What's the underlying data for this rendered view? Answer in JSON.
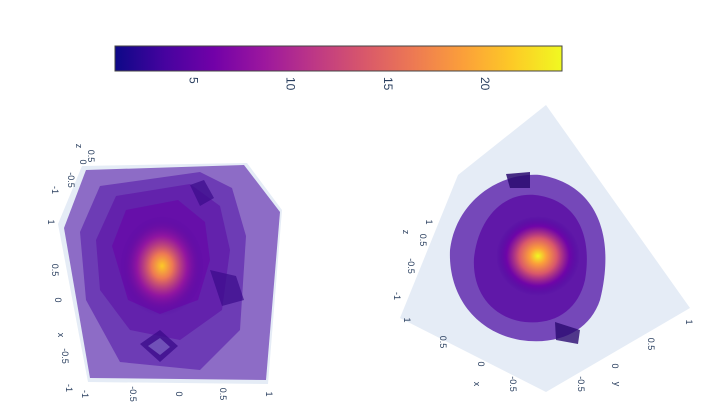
{
  "chart_data": {
    "type": "3d-isosurface",
    "colorscale": "Plasma",
    "colorbar": {
      "range": [
        1,
        24
      ],
      "ticks": [
        5,
        10,
        15,
        20
      ],
      "tick_labels": [
        "5",
        "10",
        "15",
        "20"
      ],
      "colors": [
        "#0d0887",
        "#46039f",
        "#7201a8",
        "#9c179e",
        "#bd3786",
        "#d8576b",
        "#ed7953",
        "#fb9f3a",
        "#fdca26",
        "#f0f921"
      ]
    },
    "scenes": [
      {
        "name": "left",
        "axes": {
          "x": {
            "title": "x",
            "range": [
              -1,
              1
            ],
            "ticks": [
              "-1",
              "-0.5",
              "0",
              "0.5",
              "1"
            ]
          },
          "y": {
            "title": "",
            "range": [
              -1,
              1
            ],
            "ticks": [
              "-1",
              "-0.5",
              "0",
              "0.5",
              "1"
            ]
          },
          "z": {
            "title": "z",
            "range": [
              -1,
              1
            ],
            "ticks": [
              "1",
              "0.5",
              "0",
              "-0.5"
            ]
          }
        },
        "value_range": [
          1,
          24
        ]
      },
      {
        "name": "right",
        "axes": {
          "x": {
            "title": "x",
            "range": [
              -1,
              1
            ],
            "ticks": [
              "1",
              "0.5",
              "0",
              "-0.5"
            ]
          },
          "y": {
            "title": "y",
            "range": [
              -1,
              1
            ],
            "ticks": [
              "-0.5",
              "0",
              "0.5",
              "1"
            ]
          },
          "z": {
            "title": "z",
            "range": [
              -1,
              1
            ],
            "ticks": [
              "1",
              "0.5",
              "0",
              "-0.5",
              "-1"
            ]
          }
        },
        "value_range": [
          1,
          24
        ]
      }
    ]
  }
}
